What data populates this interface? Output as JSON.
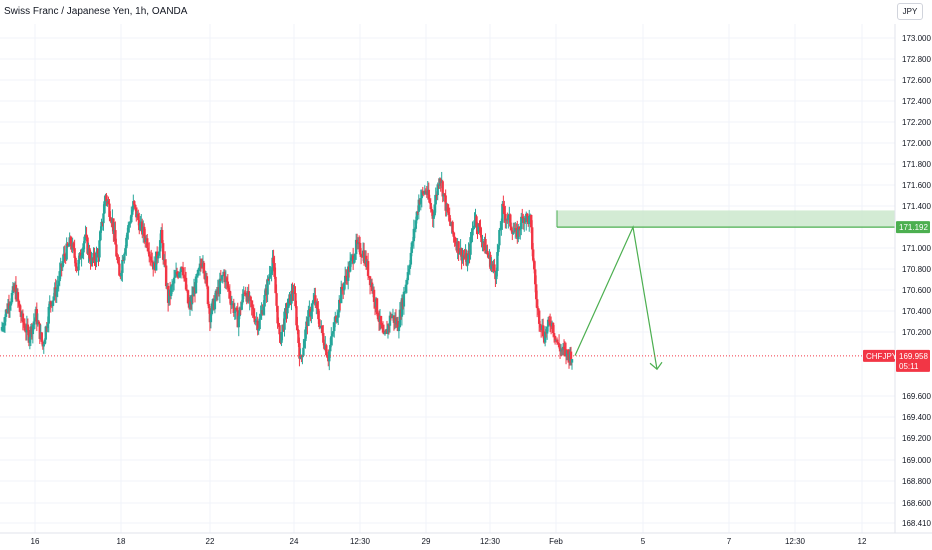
{
  "header": {
    "title": "Swiss Franc / Japanese Yen, 1h, OANDA"
  },
  "currency_button": {
    "label": "JPY"
  },
  "colors": {
    "up": "#26a69a",
    "down": "#f23645",
    "zone_fill": "#c8e6c9",
    "zone_stroke": "#4caf50",
    "arrow": "#4caf50"
  },
  "chart_data": {
    "type": "candlestick",
    "symbol": "CHFJPY",
    "price_axis": {
      "ticks": [
        "173.000",
        "172.800",
        "172.600",
        "172.400",
        "172.200",
        "172.000",
        "171.800",
        "171.600",
        "171.400",
        "171.000",
        "170.800",
        "170.600",
        "170.400",
        "170.200",
        "169.600",
        "169.400",
        "169.200",
        "169.000",
        "168.800",
        "168.600",
        "168.410"
      ],
      "ylim": [
        168.41,
        173.08
      ]
    },
    "time_axis": {
      "ticks": [
        "16",
        "18",
        "22",
        "24",
        "12:30",
        "29",
        "12:30",
        "Feb",
        "5",
        "7",
        "12:30",
        "12"
      ]
    },
    "current_price": {
      "symbol": "CHFJPY",
      "value": "169.958",
      "countdown": "05:11"
    },
    "zone_label": {
      "value": "171.192"
    },
    "supply_zone": {
      "top": 171.35,
      "bottom": 171.19
    },
    "projection": [
      [
        169.96,
        0
      ],
      [
        171.19,
        1
      ],
      [
        169.83,
        2
      ]
    ],
    "path": [
      170.2,
      170.45,
      170.6,
      170.3,
      170.15,
      170.35,
      170.05,
      170.45,
      170.6,
      170.9,
      171.05,
      170.8,
      171.1,
      170.85,
      170.95,
      171.5,
      171.25,
      170.7,
      171.1,
      171.4,
      171.2,
      171.05,
      170.8,
      171.1,
      170.5,
      170.7,
      170.85,
      170.4,
      170.65,
      170.9,
      170.35,
      170.55,
      170.75,
      170.5,
      170.3,
      170.6,
      170.4,
      170.25,
      170.55,
      170.9,
      170.1,
      170.4,
      170.6,
      169.9,
      170.3,
      170.5,
      170.2,
      169.95,
      170.3,
      170.6,
      170.8,
      171.0,
      170.95,
      170.7,
      170.4,
      170.1,
      170.35,
      170.25,
      170.6,
      171.0,
      171.45,
      171.55,
      171.3,
      171.7,
      171.35,
      171.1,
      170.95,
      170.85,
      171.3,
      171.1,
      170.9,
      170.75,
      171.35,
      171.25,
      171.1,
      171.3,
      171.25,
      170.4,
      170.15,
      170.3,
      170.05,
      169.98,
      169.96
    ]
  }
}
